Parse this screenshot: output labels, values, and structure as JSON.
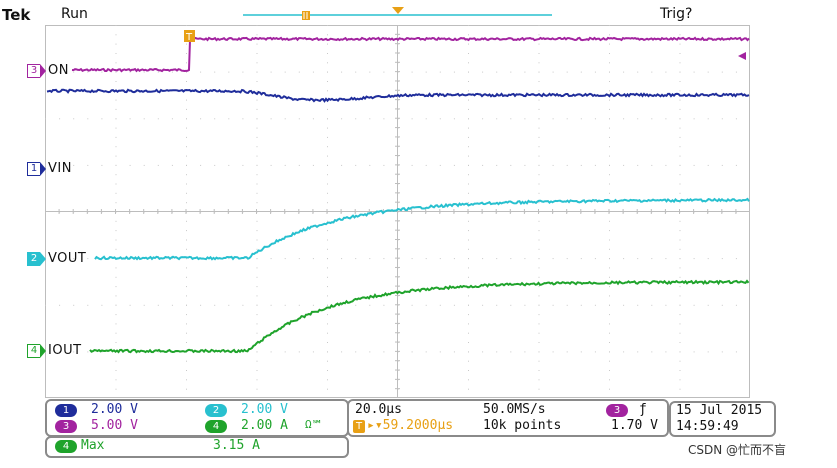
{
  "header": {
    "brand": "Tek",
    "run_state": "Run",
    "trigger_status": "Trig?"
  },
  "channels": [
    {
      "num": "1",
      "label": "VIN",
      "color": "#1f2d9b"
    },
    {
      "num": "2",
      "label": "VOUT",
      "color": "#28c0cf"
    },
    {
      "num": "3",
      "label": "ON",
      "color": "#a2239f"
    },
    {
      "num": "4",
      "label": "IOUT",
      "color": "#1fa32b"
    }
  ],
  "trigger_marker": "T",
  "settings": {
    "ch1_scale": "2.00 V",
    "ch2_scale": "2.00 V",
    "ch3_scale": "5.00 V",
    "ch4_scale": "2.00 A",
    "ch4_suffix": "Ω℠",
    "timebase": "20.0µs",
    "trigger_delay": "▸▾59.2000µs",
    "sample_rate": "50.0MS/s",
    "record_length": "10k points",
    "trigger_source": "3",
    "trigger_slope": "ƒ",
    "trigger_level": "1.70 V",
    "date": "15 Jul  2015",
    "time": "14:59:49"
  },
  "measurement": {
    "channel": "4",
    "name": "Max",
    "value": "3.15 A"
  },
  "watermark": "CSDN @忙而不盲",
  "colors": {
    "ch1": "#1f2d9b",
    "ch2": "#28c0cf",
    "ch3": "#a2239f",
    "ch4": "#1fa32b",
    "trigger": "#e8a015",
    "grid": "#bdbdbd",
    "panel_border": "#8a8a8a"
  }
}
